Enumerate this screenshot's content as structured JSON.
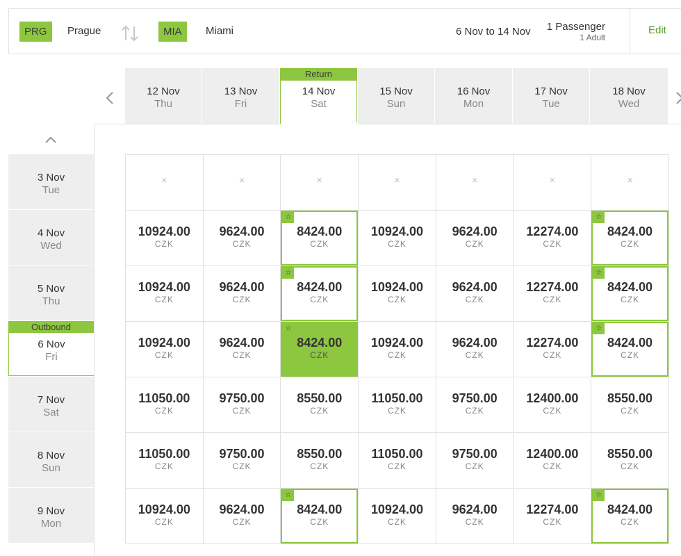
{
  "search": {
    "origin_code": "PRG",
    "origin_city": "Prague",
    "dest_code": "MIA",
    "dest_city": "Miami",
    "dates": "6 Nov to 14 Nov",
    "passengers": "1 Passenger",
    "passenger_type": "1 Adult",
    "edit_label": "Edit",
    "swap_icon": "swap-arrows-icon"
  },
  "return_header": {
    "tag": "Return",
    "columns": [
      {
        "date": "12 Nov",
        "day": "Thu"
      },
      {
        "date": "13 Nov",
        "day": "Fri"
      },
      {
        "date": "14 Nov",
        "day": "Sat"
      },
      {
        "date": "15 Nov",
        "day": "Sun"
      },
      {
        "date": "16 Nov",
        "day": "Mon"
      },
      {
        "date": "17 Nov",
        "day": "Tue"
      },
      {
        "date": "18 Nov",
        "day": "Wed"
      }
    ]
  },
  "outbound": {
    "tag": "Outbound",
    "rows": [
      {
        "date": "3 Nov",
        "day": "Tue"
      },
      {
        "date": "4 Nov",
        "day": "Wed"
      },
      {
        "date": "5 Nov",
        "day": "Thu"
      },
      {
        "date": "6 Nov",
        "day": "Fri"
      },
      {
        "date": "7 Nov",
        "day": "Sat"
      },
      {
        "date": "8 Nov",
        "day": "Sun"
      },
      {
        "date": "9 Nov",
        "day": "Mon"
      }
    ]
  },
  "currency": "CZK",
  "unavailable_mark": "×",
  "star_mark": "☆",
  "colors": {
    "accent": "#8dc63f",
    "edit": "#5b9a2a",
    "header_bg": "#eeeeee"
  },
  "selected": {
    "row": 3,
    "col": 2
  },
  "prices": [
    [
      null,
      null,
      null,
      null,
      null,
      null,
      null
    ],
    [
      "10924.00",
      "9624.00",
      "8424.00",
      "10924.00",
      "9624.00",
      "12274.00",
      "8424.00"
    ],
    [
      "10924.00",
      "9624.00",
      "8424.00",
      "10924.00",
      "9624.00",
      "12274.00",
      "8424.00"
    ],
    [
      "10924.00",
      "9624.00",
      "8424.00",
      "10924.00",
      "9624.00",
      "12274.00",
      "8424.00"
    ],
    [
      "11050.00",
      "9750.00",
      "8550.00",
      "11050.00",
      "9750.00",
      "12400.00",
      "8550.00"
    ],
    [
      "11050.00",
      "9750.00",
      "8550.00",
      "11050.00",
      "9750.00",
      "12400.00",
      "8550.00"
    ],
    [
      "10924.00",
      "9624.00",
      "8424.00",
      "10924.00",
      "9624.00",
      "12274.00",
      "8424.00"
    ]
  ],
  "best_cells": [
    [
      1,
      2
    ],
    [
      1,
      6
    ],
    [
      2,
      2
    ],
    [
      2,
      6
    ],
    [
      3,
      2
    ],
    [
      3,
      6
    ],
    [
      6,
      2
    ],
    [
      6,
      6
    ]
  ]
}
